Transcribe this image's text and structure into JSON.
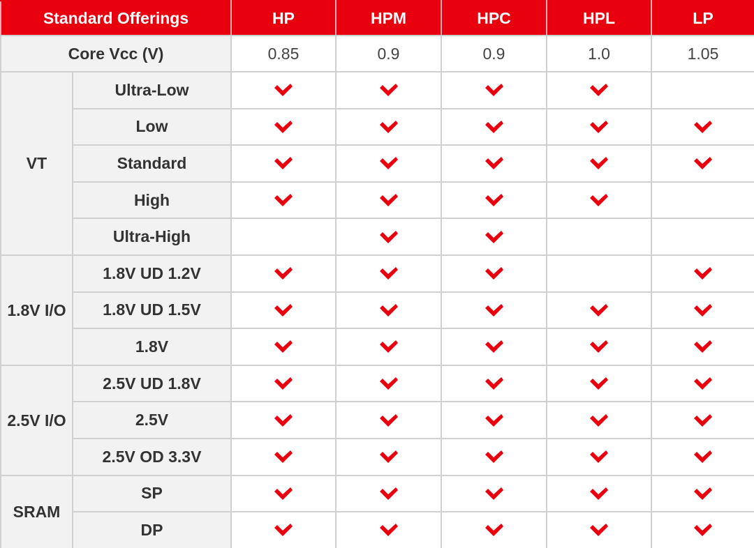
{
  "table": {
    "header": [
      "Standard Offerings",
      "HP",
      "HPM",
      "HPC",
      "HPL",
      "LP"
    ],
    "vcc": {
      "label": "Core Vcc (V)",
      "values": [
        "0.85",
        "0.9",
        "0.9",
        "1.0",
        "1.05"
      ]
    },
    "groups": [
      {
        "label": "VT",
        "rows": [
          {
            "label": "Ultra-Low",
            "checks": [
              true,
              true,
              true,
              true,
              false
            ]
          },
          {
            "label": "Low",
            "checks": [
              true,
              true,
              true,
              true,
              true
            ]
          },
          {
            "label": "Standard",
            "checks": [
              true,
              true,
              true,
              true,
              true
            ]
          },
          {
            "label": "High",
            "checks": [
              true,
              true,
              true,
              true,
              false
            ]
          },
          {
            "label": "Ultra-High",
            "checks": [
              false,
              true,
              true,
              false,
              false
            ]
          }
        ]
      },
      {
        "label": "1.8V I/O",
        "rows": [
          {
            "label": "1.8V UD 1.2V",
            "checks": [
              true,
              true,
              true,
              false,
              true
            ]
          },
          {
            "label": "1.8V UD 1.5V",
            "checks": [
              true,
              true,
              true,
              true,
              true
            ]
          },
          {
            "label": "1.8V",
            "checks": [
              true,
              true,
              true,
              true,
              true
            ]
          }
        ]
      },
      {
        "label": "2.5V I/O",
        "rows": [
          {
            "label": "2.5V UD 1.8V",
            "checks": [
              true,
              true,
              true,
              true,
              true
            ]
          },
          {
            "label": "2.5V",
            "checks": [
              true,
              true,
              true,
              true,
              true
            ]
          },
          {
            "label": "2.5V OD 3.3V",
            "checks": [
              true,
              true,
              true,
              true,
              true
            ]
          }
        ]
      },
      {
        "label": "SRAM",
        "rows": [
          {
            "label": "SP",
            "checks": [
              true,
              true,
              true,
              true,
              true
            ]
          },
          {
            "label": "DP",
            "checks": [
              true,
              true,
              true,
              true,
              true
            ]
          }
        ]
      }
    ]
  }
}
